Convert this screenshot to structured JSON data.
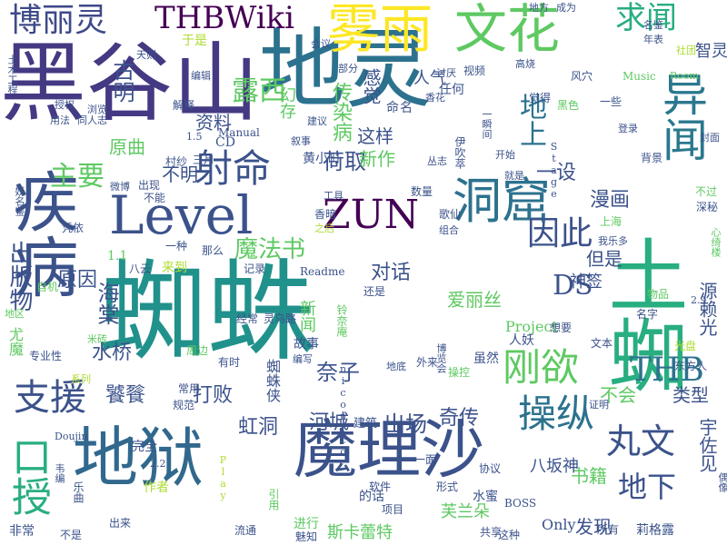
{
  "palette": {
    "background": "#ffffff",
    "dark_purple": "#440154",
    "indigo": "#3b528b",
    "blue": "#2c728e",
    "teal": "#21918c",
    "green": "#28ae80",
    "lime": "#5ec962",
    "yellow_green": "#addc30",
    "yellow": "#fde725"
  },
  "words": [
    {
      "text": "蜘蛛",
      "color": "#21918c",
      "vertical": false
    },
    {
      "text": "黑谷山",
      "color": "#443983",
      "vertical": false
    },
    {
      "text": "地灵",
      "color": "#2c728e",
      "vertical": false
    },
    {
      "text": "疾病",
      "color": "#3b528b",
      "vertical": true
    },
    {
      "text": "地狱",
      "color": "#31688e",
      "vertical": false
    },
    {
      "text": "魔理沙",
      "color": "#3b528b",
      "vertical": false
    },
    {
      "text": "土蜘",
      "color": "#28ae80",
      "vertical": true
    },
    {
      "text": "Level",
      "color": "#3b528b",
      "vertical": false
    },
    {
      "text": "雾雨",
      "color": "#fde725",
      "vertical": false
    },
    {
      "text": "文花",
      "color": "#5ec962",
      "vertical": false
    },
    {
      "text": "求闻",
      "color": "#27ad81",
      "vertical": false
    },
    {
      "text": "博丽灵",
      "color": "#3e4a89",
      "vertical": false
    },
    {
      "text": "THBWiki",
      "color": "#440154",
      "vertical": false
    },
    {
      "text": "异闻",
      "color": "#2a788e",
      "vertical": true
    },
    {
      "text": "洞窟",
      "color": "#2c728e",
      "vertical": false
    },
    {
      "text": "ZUN",
      "color": "#440154",
      "vertical": false
    },
    {
      "text": "射命",
      "color": "#3b528b",
      "vertical": false
    },
    {
      "text": "露西",
      "color": "#5ec962",
      "vertical": false
    },
    {
      "text": "口授",
      "color": "#28ae80",
      "vertical": true
    },
    {
      "text": "支援",
      "color": "#3b528b",
      "vertical": false
    },
    {
      "text": "出版物",
      "color": "#3b528b",
      "vertical": true
    },
    {
      "text": "刚欲",
      "color": "#5ec962",
      "vertical": false
    },
    {
      "text": "操纵",
      "color": "#2c728e",
      "vertical": false
    },
    {
      "text": "THB",
      "color": "#2c728e",
      "vertical": false
    },
    {
      "text": "因此",
      "color": "#3b528b",
      "vertical": false
    },
    {
      "text": "地上",
      "color": "#2c728e",
      "vertical": true
    },
    {
      "text": "DS",
      "color": "#3b528b",
      "vertical": false
    },
    {
      "text": "丸文",
      "color": "#3b528b",
      "vertical": false
    },
    {
      "text": "地下",
      "color": "#3b528b",
      "vertical": false
    },
    {
      "text": "主要",
      "color": "#5ec962",
      "vertical": false
    },
    {
      "text": "魔法书",
      "color": "#5ec962",
      "vertical": false
    },
    {
      "text": "荷取",
      "color": "#3b528b",
      "vertical": false
    },
    {
      "text": "奈子",
      "color": "#3b528b",
      "vertical": false
    },
    {
      "text": "出场",
      "color": "#3b528b",
      "vertical": false
    },
    {
      "text": "奇传",
      "color": "#3b528b",
      "vertical": false
    },
    {
      "text": "河城",
      "color": "#3b528b",
      "vertical": false
    },
    {
      "text": "虹洞",
      "color": "#3b528b",
      "vertical": false
    },
    {
      "text": "打败",
      "color": "#3b528b",
      "vertical": false
    },
    {
      "text": "饕餮",
      "color": "#3b528b",
      "vertical": false
    },
    {
      "text": "水桥",
      "color": "#3b528b",
      "vertical": false
    },
    {
      "text": "海棠",
      "color": "#3b528b",
      "vertical": true
    },
    {
      "text": "原因",
      "color": "#3b528b",
      "vertical": false
    },
    {
      "text": "原曲",
      "color": "#5ec962",
      "vertical": false
    },
    {
      "text": "不明",
      "color": "#3b528b",
      "vertical": false
    },
    {
      "text": "资料",
      "color": "#3b528b",
      "vertical": false
    },
    {
      "text": "古明",
      "color": "#3b528b",
      "vertical": true
    },
    {
      "text": "新作",
      "color": "#5ec962",
      "vertical": false
    },
    {
      "text": "这样",
      "color": "#3b528b",
      "vertical": false
    },
    {
      "text": "传染病",
      "color": "#5ec962",
      "vertical": true
    },
    {
      "text": "感觉",
      "color": "#3b528b",
      "vertical": true
    },
    {
      "text": "对话",
      "color": "#3b528b",
      "vertical": false
    },
    {
      "text": "漫画",
      "color": "#3b528b",
      "vertical": false
    },
    {
      "text": "一设",
      "color": "#3b528b",
      "vertical": false
    },
    {
      "text": "书籍",
      "color": "#5ec962",
      "vertical": false
    },
    {
      "text": "不会",
      "color": "#5ec962",
      "vertical": false
    },
    {
      "text": "类型",
      "color": "#3b528b",
      "vertical": false
    },
    {
      "text": "发现",
      "color": "#3b528b",
      "vertical": false
    },
    {
      "text": "神签",
      "color": "#3b528b",
      "vertical": false
    },
    {
      "text": "但是",
      "color": "#3b528b",
      "vertical": false
    },
    {
      "text": "爱丽丝",
      "color": "#5ec962",
      "vertical": false
    },
    {
      "text": "源赖光",
      "color": "#3b528b",
      "vertical": true
    },
    {
      "text": "宇佐见",
      "color": "#3b528b",
      "vertical": true
    },
    {
      "text": "斯卡蕾特",
      "color": "#5ec962",
      "vertical": false
    },
    {
      "text": "芙兰朵",
      "color": "#5ec962",
      "vertical": false
    },
    {
      "text": "Only",
      "color": "#3b528b",
      "vertical": false
    },
    {
      "text": "八坂神",
      "color": "#3b528b",
      "vertical": false
    },
    {
      "text": "人气",
      "color": "#3b528b",
      "vertical": false
    },
    {
      "text": "智灵",
      "color": "#3b528b",
      "vertical": false
    },
    {
      "text": "幻存",
      "color": "#5ec962",
      "vertical": true
    },
    {
      "text": "黄小町",
      "color": "#3b528b",
      "vertical": false
    },
    {
      "text": "新闻",
      "color": "#5ec962",
      "vertical": true
    },
    {
      "text": "Project",
      "color": "#5ec962",
      "vertical": false
    },
    {
      "text": "人妖",
      "color": "#3b528b",
      "vertical": false
    },
    {
      "text": "虽然",
      "color": "#3b528b",
      "vertical": false
    },
    {
      "text": "故事",
      "color": "#3b528b",
      "vertical": false
    },
    {
      "text": "蜘蛛侠",
      "color": "#3b528b",
      "vertical": true
    },
    {
      "text": "建筑",
      "color": "#3b528b",
      "vertical": false
    },
    {
      "text": "完全",
      "color": "#3b528b",
      "vertical": false
    },
    {
      "text": "尤魔",
      "color": "#5ec962",
      "vertical": true
    },
    {
      "text": "非常",
      "color": "#3b528b",
      "vertical": false
    },
    {
      "text": "乐曲",
      "color": "#3b528b",
      "vertical": true
    },
    {
      "text": "作者",
      "color": "#addc30",
      "vertical": false
    },
    {
      "text": "引用",
      "color": "#5ec962",
      "vertical": true
    },
    {
      "text": "流通",
      "color": "#3b528b",
      "vertical": false
    },
    {
      "text": "魅知",
      "color": "#3b528b",
      "vertical": false
    },
    {
      "text": "进行",
      "color": "#5ec962",
      "vertical": false
    },
    {
      "text": "共享",
      "color": "#3b528b",
      "vertical": false
    },
    {
      "text": "这种",
      "color": "#3b528b",
      "vertical": false
    },
    {
      "text": "所有",
      "color": "#3b528b",
      "vertical": false
    },
    {
      "text": "莉格露",
      "color": "#3b528b",
      "vertical": false
    },
    {
      "text": "水蜜",
      "color": "#3b528b",
      "vertical": false
    },
    {
      "text": "BOSS",
      "color": "#3b528b",
      "vertical": false
    },
    {
      "text": "项目",
      "color": "#3b528b",
      "vertical": false
    },
    {
      "text": "的话",
      "color": "#3b528b",
      "vertical": false
    },
    {
      "text": "软件",
      "color": "#3b528b",
      "vertical": false
    },
    {
      "text": "形式",
      "color": "#3b528b",
      "vertical": false
    },
    {
      "text": "协议",
      "color": "#3b528b",
      "vertical": false
    },
    {
      "text": "一面",
      "color": "#3b528b",
      "vertical": false
    },
    {
      "text": "出来",
      "color": "#3b528b",
      "vertical": false
    },
    {
      "text": "不是",
      "color": "#3b528b",
      "vertical": false
    },
    {
      "text": "规范",
      "color": "#3b528b",
      "vertical": false
    },
    {
      "text": "常用",
      "color": "#3b528b",
      "vertical": false
    },
    {
      "text": "有时",
      "color": "#3b528b",
      "vertical": false
    },
    {
      "text": "周边",
      "color": "#5ec962",
      "vertical": false
    },
    {
      "text": "经常",
      "color": "#3b528b",
      "vertical": false
    },
    {
      "text": "灵乌路",
      "color": "#3b528b",
      "vertical": false
    },
    {
      "text": "外来",
      "color": "#3b528b",
      "vertical": false
    },
    {
      "text": "想要",
      "color": "#3b528b",
      "vertical": false
    },
    {
      "text": "文本",
      "color": "#3b528b",
      "vertical": false
    },
    {
      "text": "名字",
      "color": "#3b528b",
      "vertical": false
    },
    {
      "text": "物品",
      "color": "#5ec962",
      "vertical": false
    },
    {
      "text": "光盘",
      "color": "#addc30",
      "vertical": false
    },
    {
      "text": "东方人",
      "color": "#3b528b",
      "vertical": false
    },
    {
      "text": "Readme",
      "color": "#3b528b",
      "vertical": false
    },
    {
      "text": "还是",
      "color": "#3b528b",
      "vertical": false
    },
    {
      "text": "记录",
      "color": "#3b528b",
      "vertical": false
    },
    {
      "text": "那么",
      "color": "#3b528b",
      "vertical": false
    },
    {
      "text": "来到",
      "color": "#addc30",
      "vertical": false
    },
    {
      "text": "一种",
      "color": "#3b528b",
      "vertical": false
    },
    {
      "text": "八云",
      "color": "#3b528b",
      "vertical": false
    },
    {
      "text": "1.1",
      "color": "#5ec962",
      "vertical": false
    },
    {
      "text": "凭依",
      "color": "#3b528b",
      "vertical": false
    },
    {
      "text": "不能",
      "color": "#3b528b",
      "vertical": false
    },
    {
      "text": "出现",
      "color": "#3b528b",
      "vertical": false
    },
    {
      "text": "微博",
      "color": "#3b528b",
      "vertical": false
    },
    {
      "text": "妖名鉴",
      "color": "#3b528b",
      "vertical": true
    },
    {
      "text": "村纱",
      "color": "#3b528b",
      "vertical": false
    },
    {
      "text": "三月",
      "color": "#3b528b",
      "vertical": false
    },
    {
      "text": "CD",
      "color": "#3b528b",
      "vertical": false
    },
    {
      "text": "Manual",
      "color": "#3b528b",
      "vertical": false
    },
    {
      "text": "1.5",
      "color": "#3b528b",
      "vertical": false
    },
    {
      "text": "解释",
      "color": "#3b528b",
      "vertical": false
    },
    {
      "text": "同人志",
      "color": "#3b528b",
      "vertical": false
    },
    {
      "text": "授权",
      "color": "#3b528b",
      "vertical": false
    },
    {
      "text": "用法",
      "color": "#3b528b",
      "vertical": false
    },
    {
      "text": "土木工程",
      "color": "#3b528b",
      "vertical": true
    },
    {
      "text": "天则",
      "color": "#3b528b",
      "vertical": false
    },
    {
      "text": "编辑",
      "color": "#3b528b",
      "vertical": false
    },
    {
      "text": "于是",
      "color": "#addc30",
      "vertical": false
    },
    {
      "text": "会议",
      "color": "#3b528b",
      "vertical": false
    },
    {
      "text": "部分",
      "color": "#3b528b",
      "vertical": false
    },
    {
      "text": "讨厌",
      "color": "#3b528b",
      "vertical": false
    },
    {
      "text": "任何",
      "color": "#3b528b",
      "vertical": false
    },
    {
      "text": "视频",
      "color": "#3b528b",
      "vertical": false
    },
    {
      "text": "高烧",
      "color": "#3b528b",
      "vertical": false
    },
    {
      "text": "风穴",
      "color": "#3b528b",
      "vertical": false
    },
    {
      "text": "Music",
      "color": "#5ec962",
      "vertical": false
    },
    {
      "text": "Room",
      "color": "#5ec962",
      "vertical": false
    },
    {
      "text": "地方",
      "color": "#3b528b",
      "vertical": false
    },
    {
      "text": "成为",
      "color": "#3b528b",
      "vertical": false
    },
    {
      "text": "名鉴",
      "color": "#3b528b",
      "vertical": false
    },
    {
      "text": "年表",
      "color": "#3b528b",
      "vertical": false
    },
    {
      "text": "社团",
      "color": "#addc30",
      "vertical": false
    },
    {
      "text": "香花",
      "color": "#3b528b",
      "vertical": false
    },
    {
      "text": "觉得",
      "color": "#3b528b",
      "vertical": false
    },
    {
      "text": "黑色",
      "color": "#5ec962",
      "vertical": false
    },
    {
      "text": "一些",
      "color": "#3b528b",
      "vertical": false
    },
    {
      "text": "登录",
      "color": "#3b528b",
      "vertical": false
    },
    {
      "text": "封面",
      "color": "#3b528b",
      "vertical": false
    },
    {
      "text": "背景",
      "color": "#3b528b",
      "vertical": false
    },
    {
      "text": "不过",
      "color": "#5ec962",
      "vertical": false
    },
    {
      "text": "深秘",
      "color": "#3b528b",
      "vertical": false
    },
    {
      "text": "心绮楼",
      "color": "#5ec962",
      "vertical": true
    },
    {
      "text": "丛志",
      "color": "#3b528b",
      "vertical": false
    },
    {
      "text": "伊吹萃",
      "color": "#3b528b",
      "vertical": true
    },
    {
      "text": "开始",
      "color": "#3b528b",
      "vertical": false
    },
    {
      "text": "就是",
      "color": "#3b528b",
      "vertical": false
    },
    {
      "text": "Stage",
      "color": "#3b528b",
      "vertical": true
    },
    {
      "text": "上海",
      "color": "#5ec962",
      "vertical": false
    },
    {
      "text": "我乐多",
      "color": "#3b528b",
      "vertical": false
    },
    {
      "text": "歌仙",
      "color": "#3b528b",
      "vertical": false
    },
    {
      "text": "组合",
      "color": "#3b528b",
      "vertical": false
    },
    {
      "text": "数量",
      "color": "#3b528b",
      "vertical": false
    },
    {
      "text": "工具",
      "color": "#3b528b",
      "vertical": false
    },
    {
      "text": "香暗",
      "color": "#3b528b",
      "vertical": false
    },
    {
      "text": "之后",
      "color": "#addc30",
      "vertical": false
    },
    {
      "text": "铃奈庵",
      "color": "#5ec962",
      "vertical": true
    },
    {
      "text": "niconico",
      "color": "#3b528b",
      "vertical": true
    },
    {
      "text": "编写",
      "color": "#3b528b",
      "vertical": false
    },
    {
      "text": "自机",
      "color": "#5ec962",
      "vertical": false
    },
    {
      "text": "地区",
      "color": "#5ec962",
      "vertical": false
    },
    {
      "text": "专业性",
      "color": "#3b528b",
      "vertical": false
    },
    {
      "text": "系列",
      "color": "#addc30",
      "vertical": false
    },
    {
      "text": "米砖",
      "color": "#5ec962",
      "vertical": false
    },
    {
      "text": "Doujin",
      "color": "#3b528b",
      "vertical": false
    },
    {
      "text": "2.2",
      "color": "#3b528b",
      "vertical": false
    },
    {
      "text": "Play",
      "color": "#addc30",
      "vertical": true
    },
    {
      "text": "韦编",
      "color": "#3b528b",
      "vertical": true
    },
    {
      "text": "博览会",
      "color": "#3b528b",
      "vertical": true
    },
    {
      "text": "地底",
      "color": "#3b528b",
      "vertical": false
    },
    {
      "text": "操控",
      "color": "#5ec962",
      "vertical": false
    },
    {
      "text": "证明",
      "color": "#3b528b",
      "vertical": false
    },
    {
      "text": "偶像",
      "color": "#3b528b",
      "vertical": true
    },
    {
      "text": "一瞬间",
      "color": "#3b528b",
      "vertical": true
    },
    {
      "text": "命",
      "color": "#3b528b",
      "vertical": false
    },
    {
      "text": "名",
      "color": "#3b528b",
      "vertical": false
    },
    {
      "text": "2.9",
      "color": "#3b528b",
      "vertical": false
    },
    {
      "text": "叙事",
      "color": "#3b528b",
      "vertical": false
    },
    {
      "text": "建议",
      "color": "#3b528b",
      "vertical": false
    },
    {
      "text": "浏览",
      "color": "#3b528b",
      "vertical": false
    }
  ]
}
